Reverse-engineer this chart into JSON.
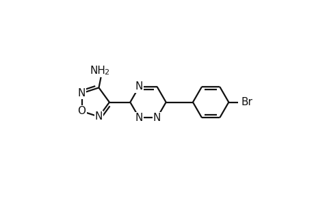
{
  "bg_color": "#ffffff",
  "line_color": "#111111",
  "line_width": 1.6,
  "fig_width": 4.6,
  "fig_height": 3.0,
  "dpi": 100,
  "font_size": 11,
  "font_size_sub": 8,
  "xlim": [
    0,
    9.2
  ],
  "ylim": [
    0,
    6.0
  ]
}
